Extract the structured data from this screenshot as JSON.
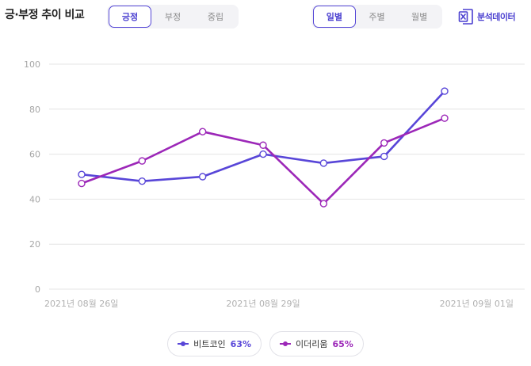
{
  "header": {
    "title": "긍·부정 추이 비교",
    "sentiment_tabs": [
      "긍정",
      "부정",
      "중립"
    ],
    "sentiment_active": 0,
    "period_tabs": [
      "일별",
      "주별",
      "월별"
    ],
    "period_active": 0,
    "export_label": "분석데이터"
  },
  "legend": {
    "items": [
      {
        "name": "비트코인",
        "percent": "63%"
      },
      {
        "name": "이더리움",
        "percent": "65%"
      }
    ]
  },
  "colors": {
    "accent": "#4a3fd0",
    "bitcoin": "#5846d8",
    "ethereum": "#9c27b8",
    "grid": "#e4e4e4",
    "axis_text": "#a6a6a6"
  },
  "chart_data": {
    "type": "line",
    "x": [
      "2021-08-26",
      "2021-08-27",
      "2021-08-28",
      "2021-08-29",
      "2021-08-30",
      "2021-08-31",
      "2021-09-01"
    ],
    "x_tick_labels": [
      "2021년 08월 26일",
      "2021년 08월 29일",
      "2021년 09월 01일"
    ],
    "x_tick_indices": [
      0,
      3,
      6
    ],
    "series": [
      {
        "name": "비트코인",
        "values": [
          51,
          48,
          50,
          60,
          56,
          59,
          88
        ]
      },
      {
        "name": "이더리움",
        "values": [
          47,
          57,
          70,
          64,
          38,
          65,
          76
        ]
      }
    ],
    "ylim": [
      0,
      100
    ],
    "yticks": [
      0,
      20,
      40,
      60,
      80,
      100
    ],
    "grid": true,
    "legend_position": "bottom"
  }
}
